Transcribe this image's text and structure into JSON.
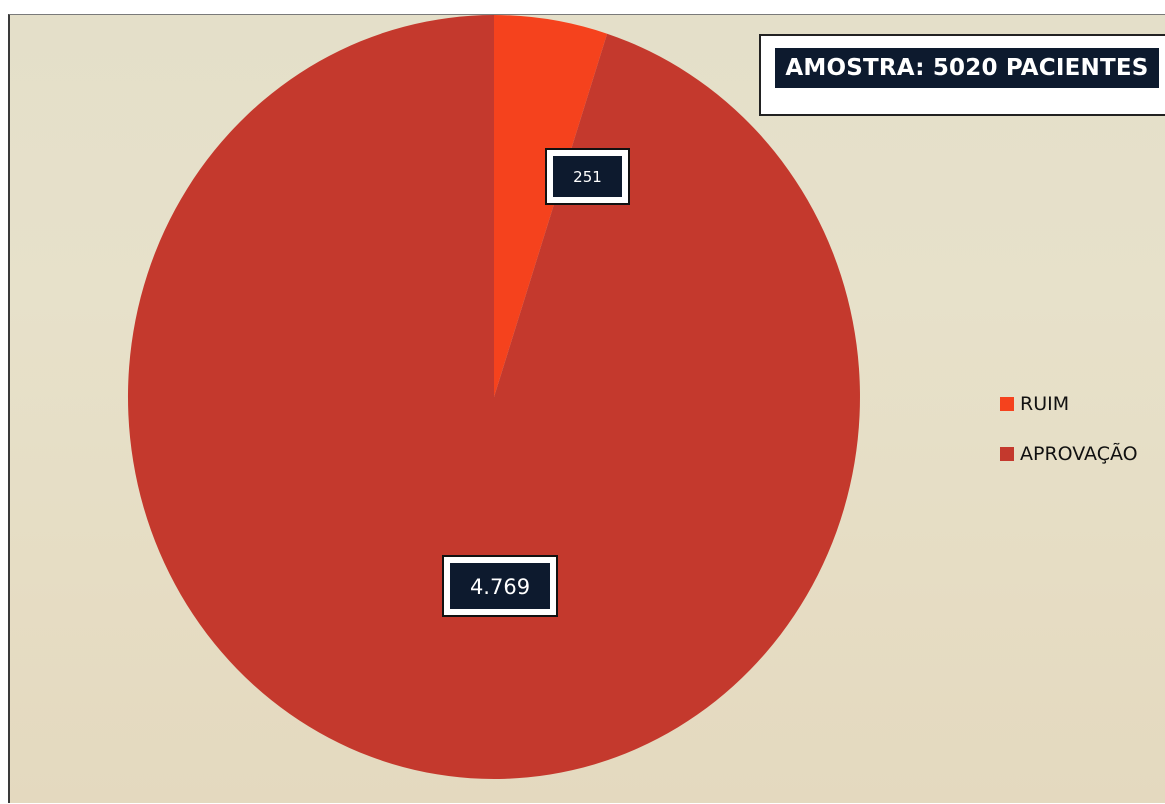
{
  "chart_data": {
    "type": "pie",
    "title": "AMOSTRA: 5020 PACIENTES",
    "categories": [
      "RUIM",
      "APROVAÇÃO"
    ],
    "values": [
      251,
      4769
    ],
    "data_labels": [
      "251",
      "4.769"
    ],
    "colors": [
      "#f5421d",
      "#c4392d"
    ],
    "start_angle_deg": 0,
    "direction": "clockwise",
    "legend_position": "right"
  }
}
